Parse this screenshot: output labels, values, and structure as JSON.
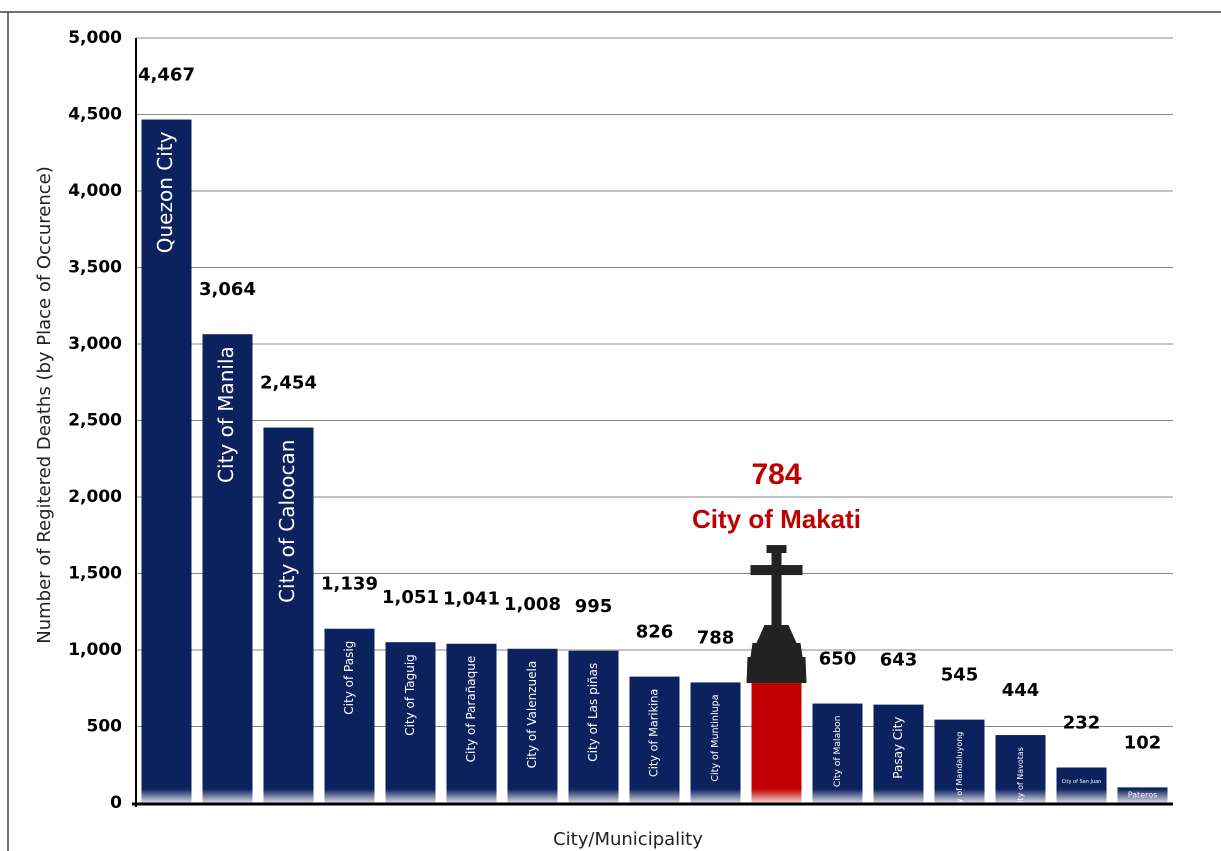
{
  "chart_data": {
    "type": "bar",
    "y_label": "Number of Regitered Deaths (by Place of Occurence)",
    "x_label": "City/Municipality",
    "categories": [
      "Quezon City",
      "City of Manila",
      "City of Caloocan",
      "City of Pasig",
      "City of Taguig",
      "City of Parañaque",
      "City of Valenzuela",
      "City of Las piñas",
      "City of Marikina",
      "City of Muntinlupa",
      "City of Makati",
      "City of Malabon",
      "Pasay City",
      "City of Mandaluyong",
      "City of Navotas",
      "City of San Juan",
      "Pateros"
    ],
    "values": [
      4467,
      3064,
      2454,
      1139,
      1051,
      1041,
      1008,
      995,
      826,
      788,
      784,
      650,
      643,
      545,
      444,
      232,
      102
    ],
    "value_labels": [
      "4,467",
      "3,064",
      "2,454",
      "1,139",
      "1,051",
      "1,041",
      "1,008",
      "995",
      "826",
      "788",
      "784",
      "650",
      "643",
      "545",
      "444",
      "232",
      "102"
    ],
    "colors": [
      "#0c225e",
      "#0c225e",
      "#0c225e",
      "#0c225e",
      "#0c225e",
      "#0c225e",
      "#0c225e",
      "#0c225e",
      "#0c225e",
      "#0c225e",
      "#c00000",
      "#0c225e",
      "#0c225e",
      "#0c225e",
      "#0c225e",
      "#0c225e",
      "#0c225e"
    ],
    "highlight_color": "#c00000",
    "ylim": [
      0,
      5000
    ],
    "yticks": [
      0,
      500,
      {
        "value": 1000,
        "label": "1,000"
      },
      {
        "value": 1500,
        "label": "1,500"
      },
      {
        "value": 2000,
        "label": "2,000"
      },
      {
        "value": 2500,
        "label": "2,500"
      },
      {
        "value": 3000,
        "label": "3,000"
      },
      {
        "value": 3500,
        "label": "3,500"
      },
      {
        "value": 4000,
        "label": "4,000"
      },
      {
        "value": 4500,
        "label": "4,500"
      },
      {
        "value": 5000,
        "label": "5,000"
      }
    ],
    "grid": true
  }
}
